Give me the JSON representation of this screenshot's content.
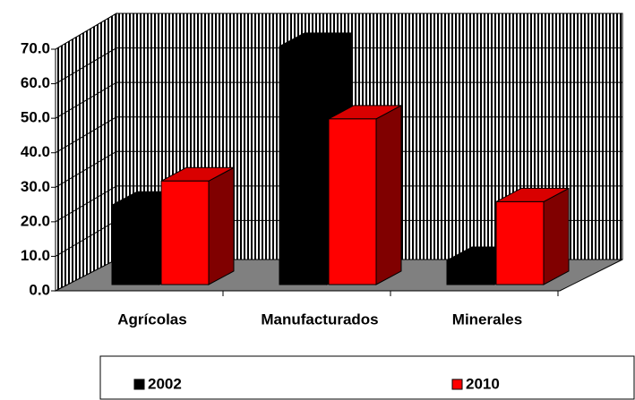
{
  "chart_data": {
    "type": "bar3d",
    "categories": [
      "Agrícolas",
      "Manufacturados",
      "Minerales"
    ],
    "series": [
      {
        "name": "2002",
        "color": "#000000",
        "values": [
          23,
          69,
          7
        ]
      },
      {
        "name": "2010",
        "color": "#ff0000",
        "values": [
          30,
          48,
          24
        ]
      }
    ],
    "ylim": [
      0,
      70
    ],
    "yticks": [
      {
        "value": 0,
        "label": "0.0"
      },
      {
        "value": 10,
        "label": "10.0"
      },
      {
        "value": 20,
        "label": "20.0"
      },
      {
        "value": 30,
        "label": "30.0"
      },
      {
        "value": 40,
        "label": "40.0"
      },
      {
        "value": 50,
        "label": "50.0"
      },
      {
        "value": 60,
        "label": "60.0"
      },
      {
        "value": 70,
        "label": "70.0"
      }
    ],
    "grid": true,
    "legend": "bottom"
  }
}
